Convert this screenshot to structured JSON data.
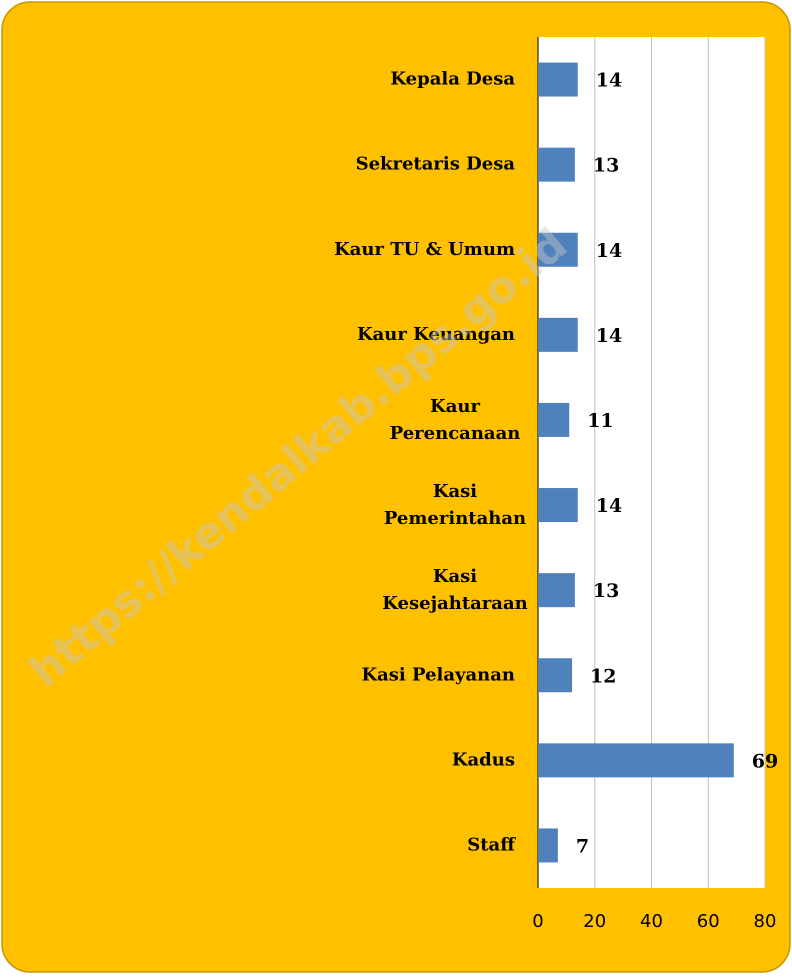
{
  "chart_data": {
    "type": "barh",
    "watermark": "https://kendalkab.bps.go.id",
    "categories": [
      "Kepala Desa",
      "Sekretaris Desa",
      "Kaur TU & Umum",
      "Kaur Keuangan",
      "Kaur Perencanaan",
      "Kasi Pemerintahan",
      "Kasi Kesejahtaraan",
      "Kasi Pelayanan",
      "Kadus",
      "Staff"
    ],
    "values": [
      14,
      13,
      14,
      14,
      11,
      14,
      13,
      12,
      69,
      7
    ],
    "color": "#4f81bd",
    "xlim": [
      0,
      80
    ],
    "xticks": [
      0,
      20,
      40,
      60,
      80
    ],
    "grid": true
  }
}
